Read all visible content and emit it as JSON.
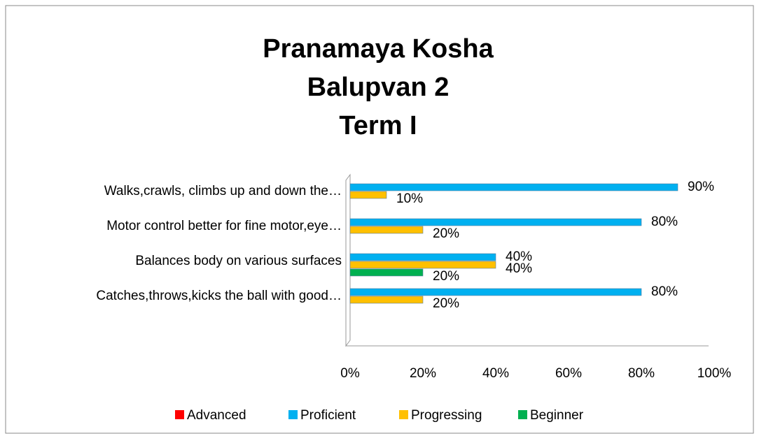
{
  "chart_data": {
    "type": "bar",
    "orientation": "horizontal",
    "title": [
      "Pranamaya Kosha",
      "Balupvan 2",
      "Term I"
    ],
    "categories": [
      "Walks,crawls, climbs up and down the…",
      "Motor control better for fine motor,eye…",
      "Balances body on various surfaces",
      "Catches,throws,kicks the  ball with good…"
    ],
    "series": [
      {
        "name": "Advanced",
        "color": "#ff0000",
        "values": [
          null,
          null,
          null,
          null
        ],
        "value_labels": [
          null,
          null,
          null,
          null
        ]
      },
      {
        "name": "Proficient",
        "color": "#00b0f0",
        "values": [
          90,
          80,
          40,
          80
        ],
        "value_labels": [
          "90%",
          "80%",
          "40%",
          "80%"
        ]
      },
      {
        "name": "Progressing",
        "color": "#ffc000",
        "values": [
          10,
          20,
          40,
          20
        ],
        "value_labels": [
          "10%",
          "20%",
          "40%",
          "20%"
        ]
      },
      {
        "name": "Beginner",
        "color": "#00b050",
        "values": [
          null,
          null,
          20,
          null
        ],
        "value_labels": [
          null,
          null,
          "20%",
          null
        ]
      }
    ],
    "xlim": [
      0,
      100
    ],
    "xticks": [
      {
        "value": 0,
        "label": "0%"
      },
      {
        "value": 20,
        "label": "20%"
      },
      {
        "value": 40,
        "label": "40%"
      },
      {
        "value": 60,
        "label": "60%"
      },
      {
        "value": 80,
        "label": "80%"
      },
      {
        "value": 100,
        "label": "100%"
      }
    ],
    "legend": "bottom"
  }
}
